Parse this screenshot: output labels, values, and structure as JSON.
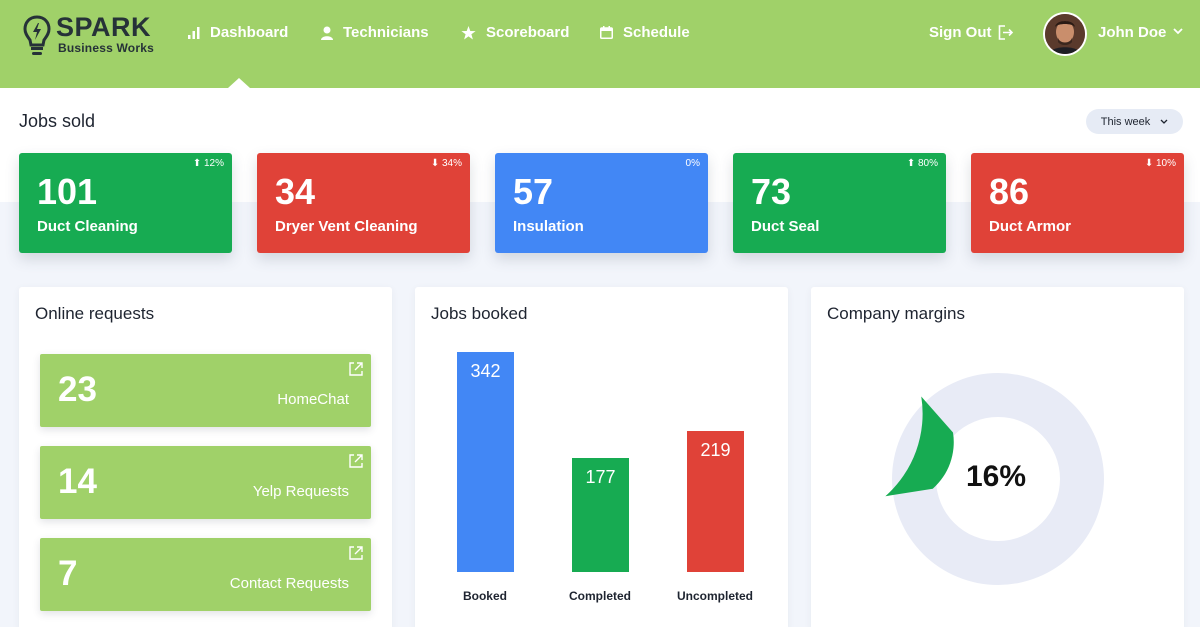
{
  "brand": {
    "title": "SPARK",
    "subtitle": "Business Works"
  },
  "nav": [
    {
      "label": "Dashboard",
      "icon": "bar-chart-icon"
    },
    {
      "label": "Technicians",
      "icon": "user-icon"
    },
    {
      "label": "Scoreboard",
      "icon": "star-icon"
    },
    {
      "label": "Schedule",
      "icon": "calendar-icon"
    }
  ],
  "user": {
    "signout": "Sign Out",
    "name": "John Doe"
  },
  "jobs_sold": {
    "title": "Jobs sold",
    "period": "This week",
    "stats": [
      {
        "value": "101",
        "label": "Duct Cleaning",
        "delta": "12%",
        "direction": "up",
        "color": "#17ab52"
      },
      {
        "value": "34",
        "label": "Dryer Vent Cleaning",
        "delta": "34%",
        "direction": "down",
        "color": "#e04238"
      },
      {
        "value": "57",
        "label": "Insulation",
        "delta": "0%",
        "direction": "none",
        "color": "#4287f5"
      },
      {
        "value": "73",
        "label": "Duct Seal",
        "delta": "80%",
        "direction": "up",
        "color": "#17ab52"
      },
      {
        "value": "86",
        "label": "Duct Armor",
        "delta": "10%",
        "direction": "down",
        "color": "#e04238"
      }
    ]
  },
  "online_requests": {
    "title": "Online requests",
    "items": [
      {
        "value": "23",
        "label": "HomeChat"
      },
      {
        "value": "14",
        "label": "Yelp Requests"
      },
      {
        "value": "7",
        "label": "Contact Requests"
      }
    ]
  },
  "jobs_booked": {
    "title": "Jobs booked",
    "chart_data": {
      "type": "bar",
      "categories": [
        "Booked",
        "Completed",
        "Uncompleted"
      ],
      "values": [
        342,
        177,
        219
      ],
      "colors": [
        "#4287f5",
        "#17ab52",
        "#e04238"
      ],
      "ylim": [
        0,
        342
      ]
    }
  },
  "company_margins": {
    "title": "Company margins",
    "chart_data": {
      "type": "pie",
      "values": [
        16,
        84
      ],
      "colors": [
        "#17ab52",
        "#e8ebf6"
      ],
      "center_label": "16%"
    }
  }
}
